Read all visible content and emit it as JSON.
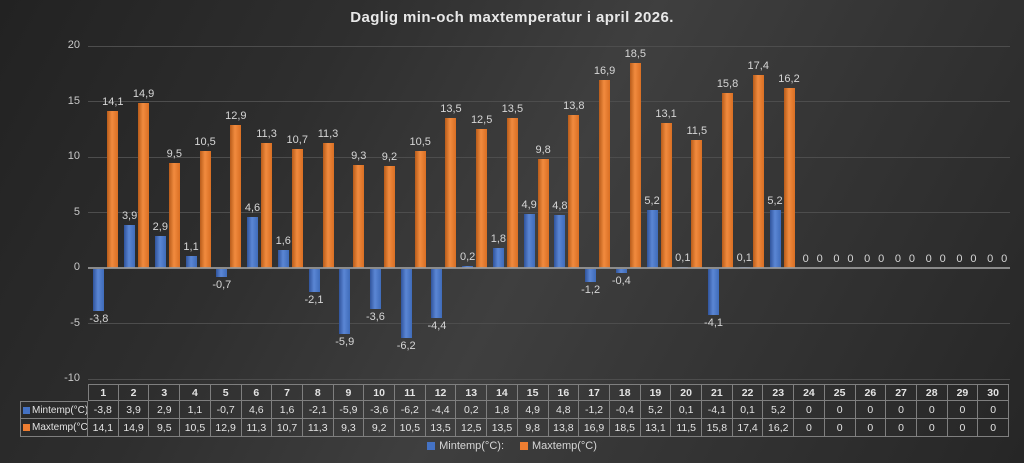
{
  "chart_data": {
    "type": "bar",
    "title": "Daglig min-och maxtemperatur i april 2026.",
    "categories": [
      "1",
      "2",
      "3",
      "4",
      "5",
      "6",
      "7",
      "8",
      "9",
      "10",
      "11",
      "12",
      "13",
      "14",
      "15",
      "16",
      "17",
      "18",
      "19",
      "20",
      "21",
      "22",
      "23",
      "24",
      "25",
      "26",
      "27",
      "28",
      "29",
      "30"
    ],
    "xlabel": "",
    "ylabel": "",
    "ylim": [
      -10,
      20
    ],
    "yticks": [
      20,
      15,
      10,
      5,
      0,
      -5,
      -10
    ],
    "grid": true,
    "legend_position": "bottom",
    "series": [
      {
        "name": "Mintemp(°C):",
        "color": "#4472C4",
        "values": [
          -3.8,
          3.9,
          2.9,
          1.1,
          -0.7,
          4.6,
          1.6,
          -2.1,
          -5.9,
          -3.6,
          -6.2,
          -4.4,
          0.2,
          1.8,
          4.9,
          4.8,
          -1.2,
          -0.4,
          5.2,
          0.1,
          -4.1,
          0.1,
          5.2,
          0,
          0,
          0,
          0,
          0,
          0,
          0
        ],
        "labels": [
          "-3,8",
          "3,9",
          "2,9",
          "1,1",
          "-0,7",
          "4,6",
          "1,6",
          "-2,1",
          "-5,9",
          "-3,6",
          "-6,2",
          "-4,4",
          "0,2",
          "1,8",
          "4,9",
          "4,8",
          "-1,2",
          "-0,4",
          "5,2",
          "0,1",
          "-4,1",
          "0,1",
          "5,2",
          "0",
          "0",
          "0",
          "0",
          "0",
          "0",
          "0"
        ]
      },
      {
        "name": "Maxtemp(°C)",
        "color": "#ED7D31",
        "values": [
          14.1,
          14.9,
          9.5,
          10.5,
          12.9,
          11.3,
          10.7,
          11.3,
          9.3,
          9.2,
          10.5,
          13.5,
          12.5,
          13.5,
          9.8,
          13.8,
          16.9,
          18.5,
          13.1,
          11.5,
          15.8,
          17.4,
          16.2,
          0,
          0,
          0,
          0,
          0,
          0,
          0
        ],
        "labels": [
          "14,1",
          "14,9",
          "9,5",
          "10,5",
          "12,9",
          "11,3",
          "10,7",
          "11,3",
          "9,3",
          "9,2",
          "10,5",
          "13,5",
          "12,5",
          "13,5",
          "9,8",
          "13,8",
          "16,9",
          "18,5",
          "13,1",
          "11,5",
          "15,8",
          "17,4",
          "16,2",
          "0",
          "0",
          "0",
          "0",
          "0",
          "0",
          "0"
        ]
      }
    ]
  }
}
